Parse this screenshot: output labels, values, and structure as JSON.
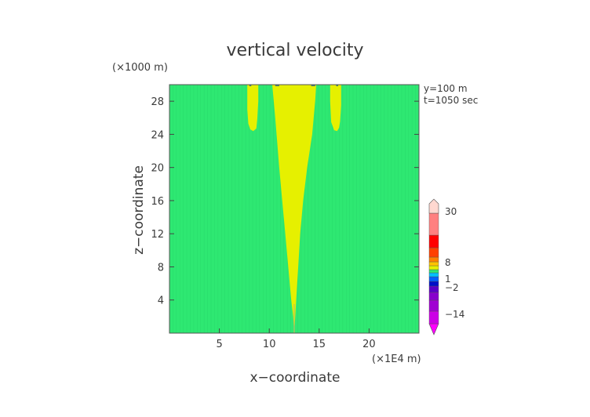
{
  "chart_data": {
    "type": "heatmap",
    "title": "vertical velocity",
    "xlabel": "x−coordinate",
    "ylabel": "z−coordinate",
    "x_unit": "(×1E4 m)",
    "y_unit": "(×1000 m)",
    "annotations": [
      "y=100 m",
      "t=1050 sec"
    ],
    "xlim": [
      0,
      25
    ],
    "ylim": [
      0,
      30
    ],
    "x_ticks": [
      5,
      10,
      15,
      20
    ],
    "y_ticks": [
      4,
      8,
      12,
      16,
      20,
      24,
      28
    ],
    "grid": false,
    "colorbar": {
      "placement": "right",
      "labels": [
        {
          "text": "30",
          "value": 30
        },
        {
          "text": "8",
          "value": 8
        },
        {
          "text": "1",
          "value": 1
        },
        {
          "text": "−2",
          "value": -2
        },
        {
          "text": "−14",
          "value": -14
        }
      ],
      "bands": [
        {
          "color": "#ff00ff"
        },
        {
          "color": "#cc00e6"
        },
        {
          "color": "#a000d2"
        },
        {
          "color": "#8800cc"
        },
        {
          "color": "#5a00c8"
        },
        {
          "color": "#0010c8"
        },
        {
          "color": "#0060ff"
        },
        {
          "color": "#00bfff"
        },
        {
          "color": "#2ee872"
        },
        {
          "color": "#e6f000"
        },
        {
          "color": "#ffc400"
        },
        {
          "color": "#ff8000"
        },
        {
          "color": "#ff4000"
        },
        {
          "color": "#ff0000"
        },
        {
          "color": "#ff8080"
        },
        {
          "color": "#ffd8d0"
        }
      ]
    },
    "colors": {
      "background_field": "#2ee872",
      "positive_region": "#e6f000"
    },
    "regions": [
      {
        "name": "central updraft",
        "range": "0 to 1",
        "x": [
          10.3,
          10.6,
          11.0,
          11.3,
          11.6,
          11.9,
          12.2,
          12.4,
          12.5,
          12.6,
          12.7,
          12.9,
          13.1,
          13.4,
          13.8,
          14.3,
          14.6,
          14.7
        ],
        "y": [
          30,
          26,
          20,
          16,
          12,
          8,
          4,
          2,
          0,
          2,
          4,
          8,
          12,
          16,
          20,
          24,
          28,
          30
        ]
      },
      {
        "name": "left updraft",
        "range": "0 to 1",
        "x": [
          7.8,
          7.8,
          7.9,
          8.1,
          8.4,
          8.7,
          8.8,
          8.9,
          8.9
        ],
        "y": [
          30,
          27,
          25.3,
          24.6,
          24.4,
          24.7,
          25.8,
          28,
          30
        ]
      },
      {
        "name": "right updraft",
        "range": "0 to 1",
        "x": [
          16.1,
          16.1,
          16.2,
          16.5,
          16.8,
          17.0,
          17.1,
          17.2,
          17.2
        ],
        "y": [
          30,
          28,
          25.5,
          24.5,
          24.4,
          24.8,
          25.6,
          27.5,
          30
        ]
      }
    ]
  }
}
